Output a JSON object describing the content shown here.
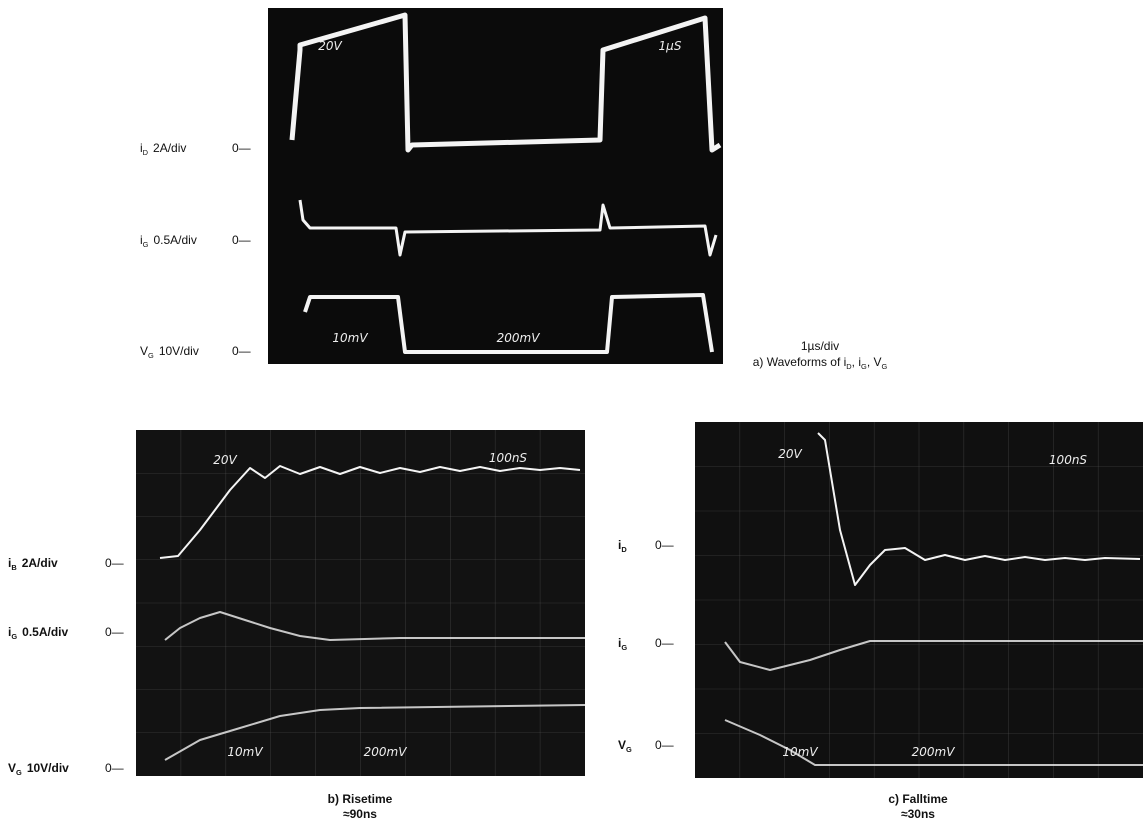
{
  "panel_a": {
    "screen_text": [
      "20V",
      "1µS",
      "10mV",
      "200mV"
    ],
    "traces": [
      {
        "name": [
          {
            "text": "i"
          },
          {
            "sub": "D"
          },
          {
            "text": "2A/div"
          }
        ],
        "zero": "0—"
      },
      {
        "name": [
          {
            "text": "i"
          },
          {
            "sub": "G"
          },
          {
            "text": "0.5A/div"
          }
        ],
        "zero": "0—"
      },
      {
        "name": [
          {
            "text": "V"
          },
          {
            "sub": "G"
          },
          {
            "text": "10V/div"
          }
        ],
        "zero": "0—"
      }
    ],
    "caption": {
      "line1": "1µs/div",
      "line2": [
        {
          "text": "a) Waveforms of i"
        },
        {
          "sub": "D"
        },
        {
          "text": ", i"
        },
        {
          "sub": "G"
        },
        {
          "text": ", V"
        },
        {
          "sub": "G"
        }
      ]
    }
  },
  "panel_b": {
    "screen_text": [
      "20V",
      "100nS",
      "10mV",
      "200mV"
    ],
    "traces": [
      {
        "name": [
          {
            "text": "i"
          },
          {
            "sub": "B"
          },
          {
            "text": "2A/div"
          }
        ],
        "zero": "0—"
      },
      {
        "name": [
          {
            "text": "i"
          },
          {
            "sub": "G"
          },
          {
            "text": "0.5A/div"
          }
        ],
        "zero": "0—"
      },
      {
        "name": [
          {
            "text": "V"
          },
          {
            "sub": "G"
          },
          {
            "text": "10V/div"
          }
        ],
        "zero": "0—"
      }
    ],
    "caption": {
      "line1": "b) Risetime",
      "line2": [
        {
          "text": "≈90ns"
        }
      ]
    }
  },
  "panel_c": {
    "screen_text": [
      "20V",
      "100nS",
      "10mV",
      "200mV"
    ],
    "traces": [
      {
        "name": [
          {
            "text": "i"
          },
          {
            "sub": "D"
          }
        ],
        "zero": "0—"
      },
      {
        "name": [
          {
            "text": "i"
          },
          {
            "sub": "G"
          }
        ],
        "zero": "0—"
      },
      {
        "name": [
          {
            "text": "V"
          },
          {
            "sub": "G"
          }
        ],
        "zero": "0—"
      }
    ],
    "caption": {
      "line1": "c) Falltime",
      "line2": [
        {
          "text": "≈30ns"
        }
      ]
    }
  }
}
